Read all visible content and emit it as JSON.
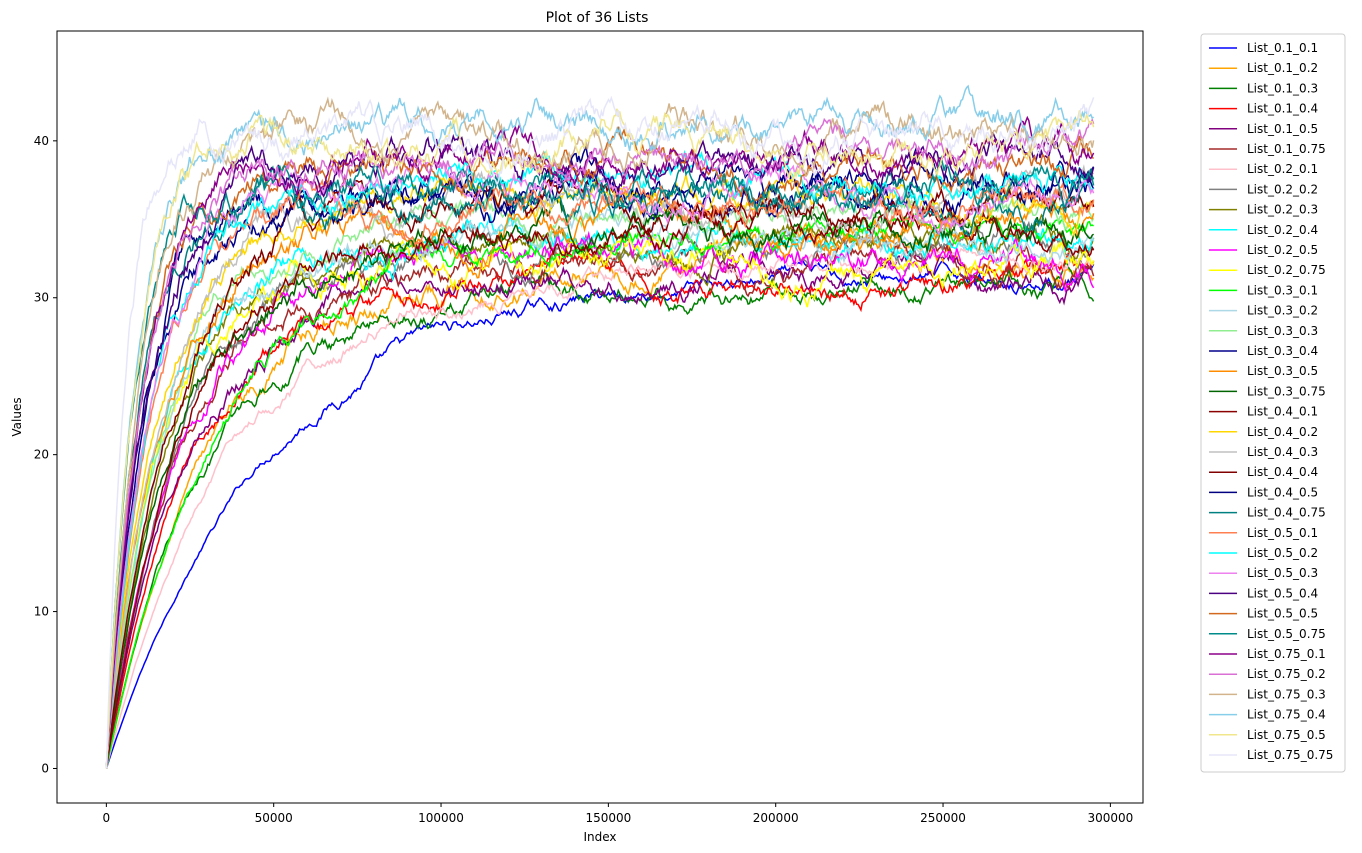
{
  "chart_data": {
    "type": "line",
    "title": "Plot of 36 Lists",
    "xlabel": "Index",
    "ylabel": "Values",
    "xlim": [
      -14750,
      309750
    ],
    "ylim": [
      -2.2,
      47
    ],
    "xticks": [
      0,
      50000,
      100000,
      150000,
      200000,
      250000,
      300000
    ],
    "yticks": [
      0,
      10,
      20,
      30,
      40
    ],
    "legend_position": "outside-right",
    "grid": false,
    "x_range": [
      0,
      295000
    ],
    "series": [
      {
        "name": "List_0.1_0.1",
        "color": "#0000ff",
        "plateau": 31.5,
        "tau": 48000,
        "noise": 0.5
      },
      {
        "name": "List_0.1_0.2",
        "color": "#ffa500",
        "plateau": 32.5,
        "tau": 32000,
        "noise": 0.8
      },
      {
        "name": "List_0.1_0.3",
        "color": "#008000",
        "plateau": 30.5,
        "tau": 29000,
        "noise": 0.7
      },
      {
        "name": "List_0.1_0.4",
        "color": "#ff0000",
        "plateau": 31.5,
        "tau": 26000,
        "noise": 0.8
      },
      {
        "name": "List_0.1_0.5",
        "color": "#800080",
        "plateau": 31.5,
        "tau": 24000,
        "noise": 0.8
      },
      {
        "name": "List_0.1_0.75",
        "color": "#a52a2a",
        "plateau": 32.0,
        "tau": 22000,
        "noise": 0.8
      },
      {
        "name": "List_0.2_0.1",
        "color": "#ffc0cb",
        "plateau": 32.0,
        "tau": 38000,
        "noise": 0.6
      },
      {
        "name": "List_0.2_0.2",
        "color": "#808080",
        "plateau": 33.5,
        "tau": 24000,
        "noise": 0.8
      },
      {
        "name": "List_0.2_0.3",
        "color": "#808000",
        "plateau": 33.5,
        "tau": 20000,
        "noise": 0.8
      },
      {
        "name": "List_0.2_0.4",
        "color": "#00ffff",
        "plateau": 33.5,
        "tau": 17000,
        "noise": 0.9
      },
      {
        "name": "List_0.2_0.5",
        "color": "#ff00ff",
        "plateau": 33.0,
        "tau": 22000,
        "noise": 0.9
      },
      {
        "name": "List_0.2_0.75",
        "color": "#ffff00",
        "plateau": 32.0,
        "tau": 16000,
        "noise": 0.9
      },
      {
        "name": "List_0.3_0.1",
        "color": "#00ff00",
        "plateau": 34.0,
        "tau": 33000,
        "noise": 0.7
      },
      {
        "name": "List_0.3_0.2",
        "color": "#add8e6",
        "plateau": 34.0,
        "tau": 19000,
        "noise": 0.8
      },
      {
        "name": "List_0.3_0.3",
        "color": "#90ee90",
        "plateau": 35.0,
        "tau": 18000,
        "noise": 0.8
      },
      {
        "name": "List_0.3_0.4",
        "color": "#00008b",
        "plateau": 36.5,
        "tau": 12000,
        "noise": 1.0
      },
      {
        "name": "List_0.3_0.5",
        "color": "#ff8c00",
        "plateau": 34.5,
        "tau": 16000,
        "noise": 0.9
      },
      {
        "name": "List_0.3_0.75",
        "color": "#006400",
        "plateau": 34.0,
        "tau": 21000,
        "noise": 0.9
      },
      {
        "name": "List_0.4_0.1",
        "color": "#8b0000",
        "plateau": 34.5,
        "tau": 24000,
        "noise": 0.8
      },
      {
        "name": "List_0.4_0.2",
        "color": "#ffd700",
        "plateau": 36.0,
        "tau": 15000,
        "noise": 0.9
      },
      {
        "name": "List_0.4_0.3",
        "color": "#c0c0c0",
        "plateau": 36.0,
        "tau": 17000,
        "noise": 0.9
      },
      {
        "name": "List_0.4_0.4",
        "color": "#800000",
        "plateau": 36.0,
        "tau": 20000,
        "noise": 0.9
      },
      {
        "name": "List_0.4_0.5",
        "color": "#000080",
        "plateau": 37.0,
        "tau": 11000,
        "noise": 1.0
      },
      {
        "name": "List_0.4_0.75",
        "color": "#008080",
        "plateau": 36.5,
        "tau": 9000,
        "noise": 1.0
      },
      {
        "name": "List_0.5_0.1",
        "color": "#ff7f50",
        "plateau": 36.0,
        "tau": 14000,
        "noise": 0.9
      },
      {
        "name": "List_0.5_0.2",
        "color": "#00ffff",
        "plateau": 37.0,
        "tau": 14000,
        "noise": 0.9
      },
      {
        "name": "List_0.5_0.3",
        "color": "#ee82ee",
        "plateau": 37.0,
        "tau": 13000,
        "noise": 0.9
      },
      {
        "name": "List_0.5_0.4",
        "color": "#4b0082",
        "plateau": 38.5,
        "tau": 12000,
        "noise": 1.0
      },
      {
        "name": "List_0.5_0.5",
        "color": "#d2691e",
        "plateau": 38.5,
        "tau": 11000,
        "noise": 1.0
      },
      {
        "name": "List_0.5_0.75",
        "color": "#008b8b",
        "plateau": 37.0,
        "tau": 8000,
        "noise": 1.0
      },
      {
        "name": "List_0.75_0.1",
        "color": "#8b008b",
        "plateau": 39.5,
        "tau": 12000,
        "noise": 1.0
      },
      {
        "name": "List_0.75_0.2",
        "color": "#da70d6",
        "plateau": 39.0,
        "tau": 11000,
        "noise": 1.0
      },
      {
        "name": "List_0.75_0.3",
        "color": "#d2b48c",
        "plateau": 40.0,
        "tau": 11000,
        "noise": 1.1
      },
      {
        "name": "List_0.75_0.4",
        "color": "#87ceeb",
        "plateau": 41.0,
        "tau": 9000,
        "noise": 1.1
      },
      {
        "name": "List_0.75_0.5",
        "color": "#f0e68c",
        "plateau": 40.0,
        "tau": 9000,
        "noise": 1.1
      },
      {
        "name": "List_0.75_0.75",
        "color": "#e6e6fa",
        "plateau": 40.5,
        "tau": 6000,
        "noise": 1.2
      }
    ]
  }
}
